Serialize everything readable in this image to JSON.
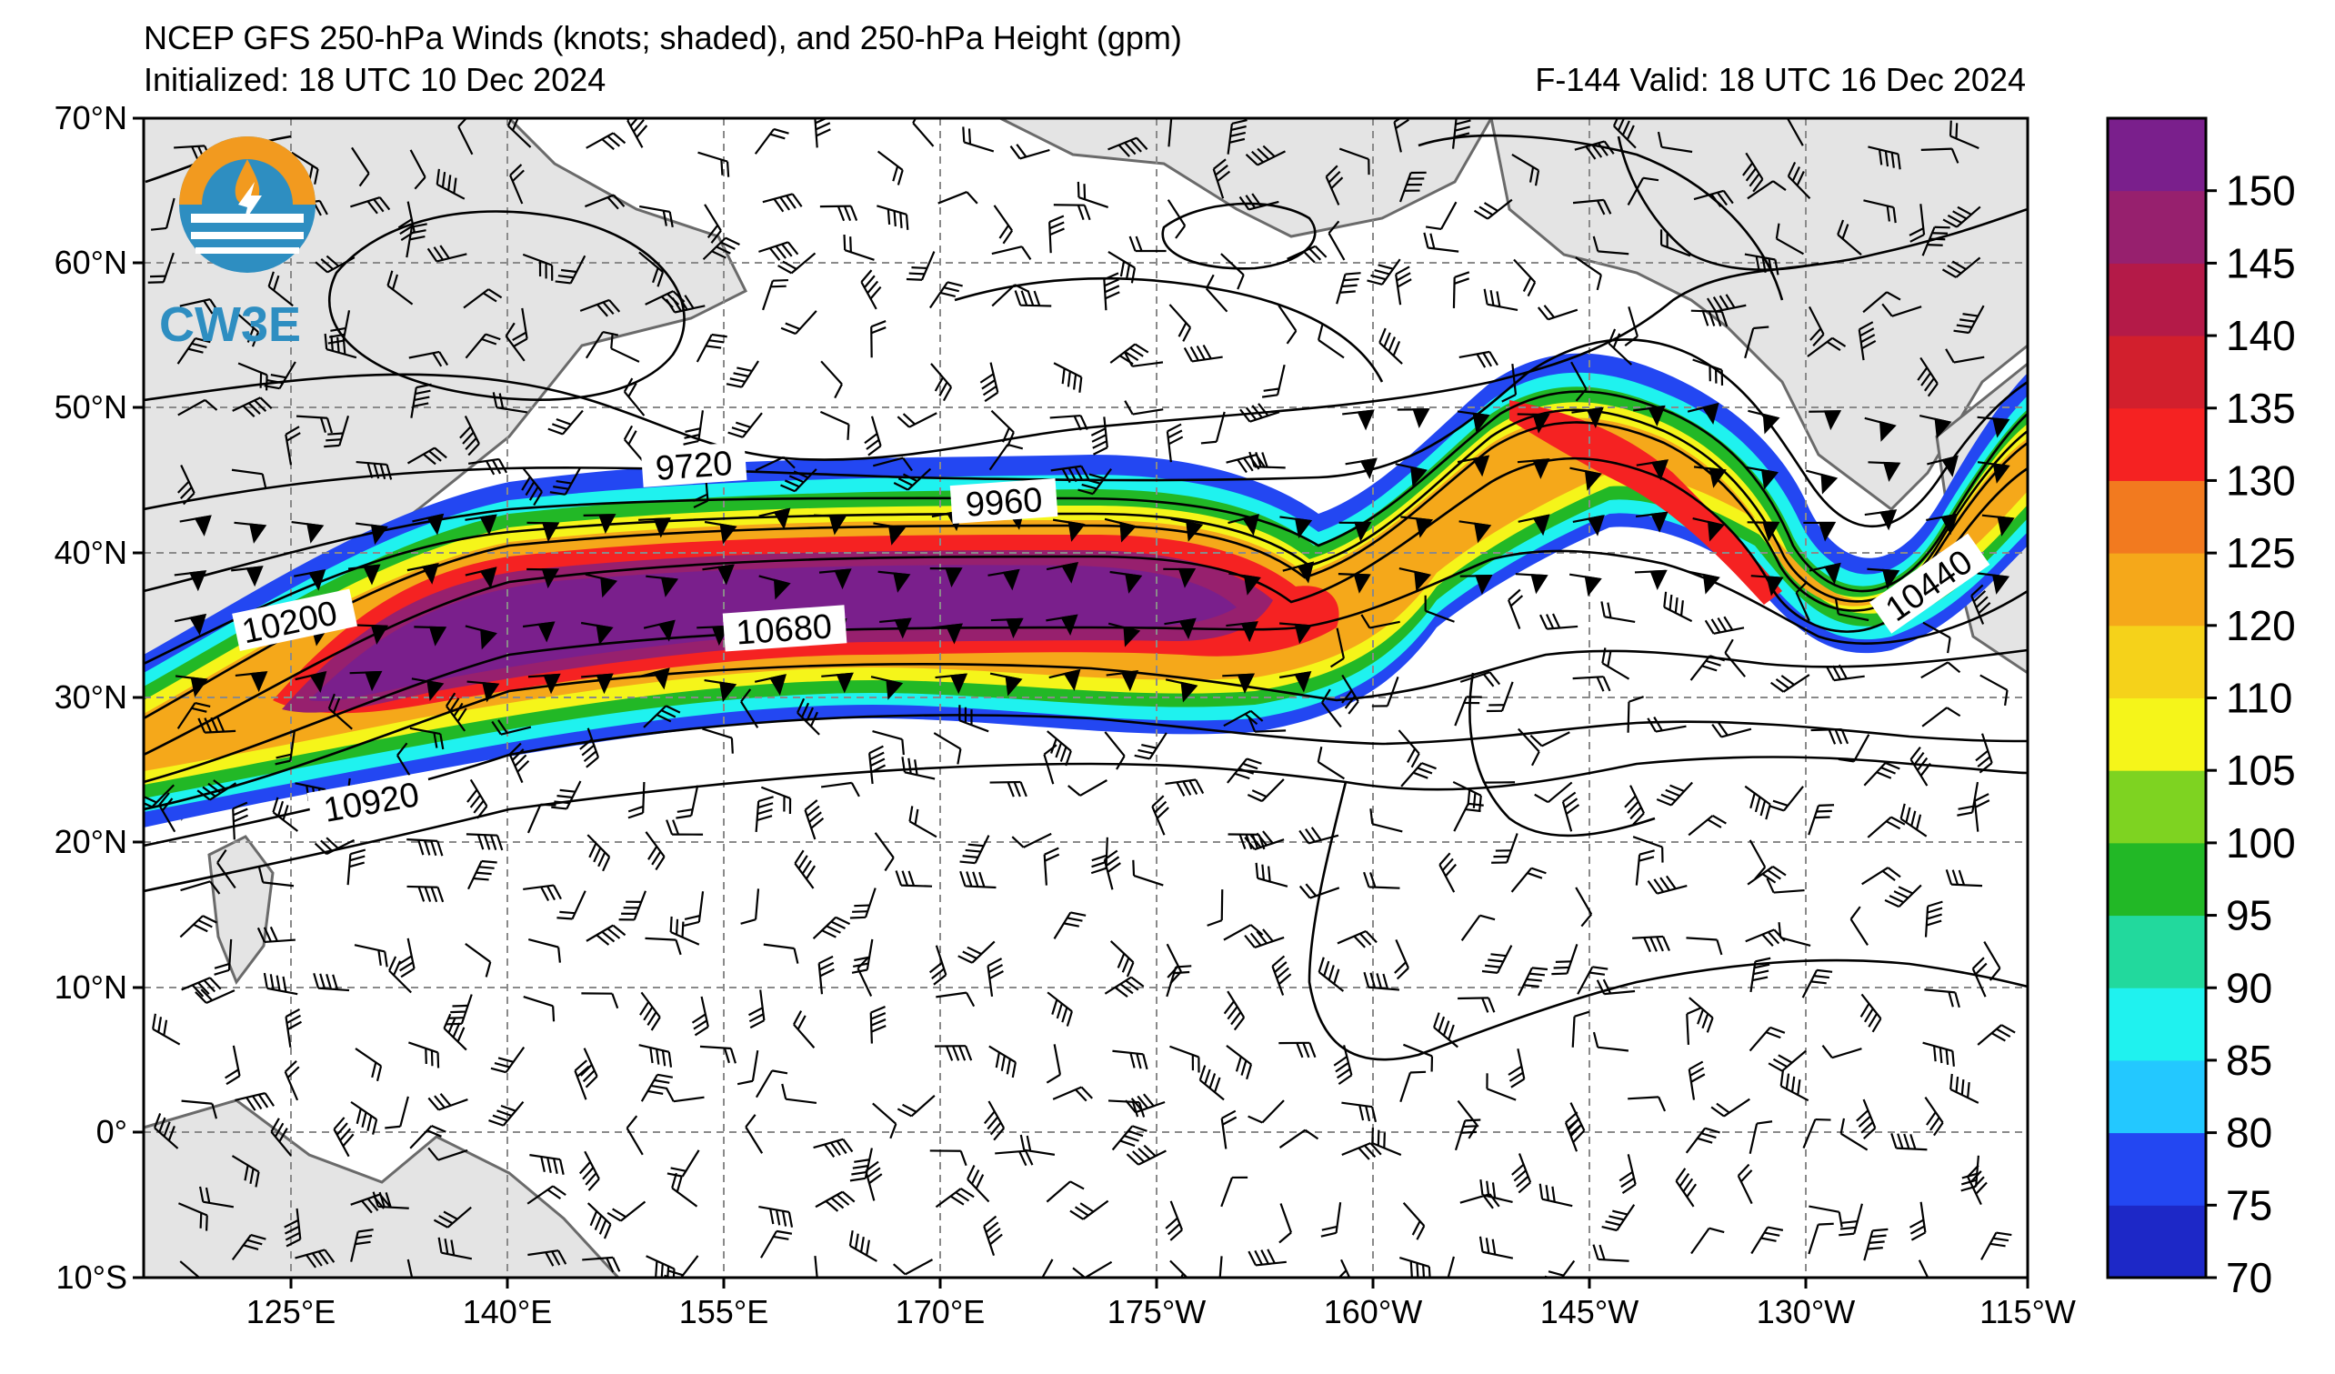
{
  "header": {
    "title": "NCEP GFS 250-hPa Winds (knots; shaded), and 250-hPa Height (gpm)",
    "initialized": "Initialized: 18 UTC 10 Dec 2024",
    "valid": "F-144  Valid: 18 UTC 16 Dec 2024"
  },
  "logo": {
    "text": "CW3E",
    "icon": "cw3e-logo-icon"
  },
  "axes": {
    "lat_labels": [
      "70°N",
      "60°N",
      "50°N",
      "40°N",
      "30°N",
      "20°N",
      "10°N",
      "0°",
      "10°S"
    ],
    "lon_labels": [
      "125°E",
      "140°E",
      "155°E",
      "170°E",
      "175°W",
      "160°W",
      "145°W",
      "130°W",
      "115°W"
    ]
  },
  "contour_labels": [
    "9720",
    "9960",
    "10200",
    "10680",
    "10440",
    "10920"
  ],
  "colorbar": {
    "tick_labels": [
      "70",
      "75",
      "80",
      "85",
      "90",
      "95",
      "100",
      "105",
      "110",
      "120",
      "125",
      "130",
      "135",
      "140",
      "145",
      "150"
    ],
    "colors": [
      "#1d28c7",
      "#2347f2",
      "#23c8ff",
      "#1ff2ef",
      "#22d99d",
      "#22b826",
      "#7ed321",
      "#f5f51a",
      "#f5d21a",
      "#f5a81a",
      "#f27a1f",
      "#f52222",
      "#d21f2d",
      "#b41a48",
      "#97206e",
      "#7a1f8c"
    ]
  }
}
